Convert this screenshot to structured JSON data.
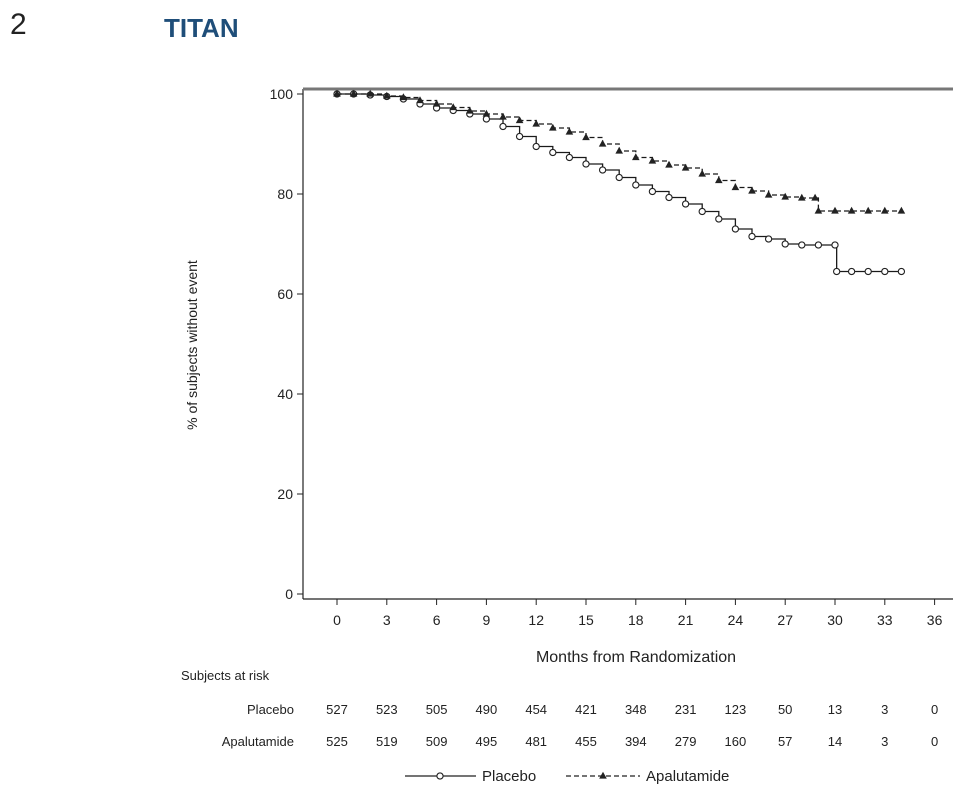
{
  "figure_number": "2",
  "figure_title": "TITAN",
  "chart_data": {
    "type": "line",
    "xlabel": "Months from Randomization",
    "ylabel": "% of subjects without event",
    "xlim": [
      -2,
      36.5
    ],
    "ylim": [
      -1,
      101
    ],
    "x_ticks": [
      0,
      3,
      6,
      9,
      12,
      15,
      18,
      21,
      24,
      27,
      30,
      33,
      36
    ],
    "y_ticks": [
      0,
      20,
      40,
      60,
      80,
      100
    ],
    "grid": false,
    "series": [
      {
        "name": "Placebo",
        "style": "solid",
        "marker": "open-circle",
        "color": "#1a1a1a",
        "x": [
          0,
          1,
          2,
          3,
          4,
          5,
          6,
          7,
          8,
          9,
          10,
          11,
          12,
          13,
          14,
          15,
          16,
          17,
          18,
          19,
          20,
          21,
          22,
          23,
          24,
          25,
          26,
          27,
          28,
          29,
          30,
          30.1,
          31,
          32,
          33,
          34
        ],
        "y": [
          100,
          100,
          99.8,
          99.5,
          99,
          98,
          97.2,
          96.7,
          96,
          95,
          93.5,
          91.5,
          89.5,
          88.3,
          87.3,
          86,
          84.8,
          83.3,
          81.8,
          80.5,
          79.3,
          78,
          76.5,
          75,
          73,
          71.5,
          71,
          70,
          69.8,
          69.8,
          69.8,
          64.5,
          64.5,
          64.5,
          64.5,
          64.5
        ]
      },
      {
        "name": "Apalutamide",
        "style": "dashed",
        "marker": "filled-triangle",
        "color": "#1a1a1a",
        "x": [
          0,
          1,
          2,
          3,
          4,
          5,
          6,
          7,
          8,
          9,
          10,
          11,
          12,
          13,
          14,
          15,
          16,
          17,
          18,
          19,
          20,
          21,
          22,
          23,
          24,
          25,
          26,
          27,
          28,
          28.8,
          29,
          30,
          31,
          32,
          33,
          34
        ],
        "y": [
          100,
          100,
          100,
          99.6,
          99.3,
          98.7,
          98,
          97.3,
          96.6,
          96,
          95.4,
          94.7,
          94,
          93.2,
          92.4,
          91.3,
          90,
          88.6,
          87.3,
          86.6,
          85.8,
          85.2,
          84,
          82.7,
          81.3,
          80.6,
          79.8,
          79.4,
          79.2,
          79.2,
          76.6,
          76.6,
          76.6,
          76.6,
          76.6,
          76.6
        ]
      }
    ],
    "risk_table": {
      "title": "Subjects at risk",
      "times": [
        0,
        3,
        6,
        9,
        12,
        15,
        18,
        21,
        24,
        27,
        30,
        33,
        36
      ],
      "rows": [
        {
          "label": "Placebo",
          "values": [
            "527",
            "523",
            "505",
            "490",
            "454",
            "421",
            "348",
            "231",
            "123",
            "50",
            "13",
            "3",
            "0"
          ]
        },
        {
          "label": "Apalutamide",
          "values": [
            "525",
            "519",
            "509",
            "495",
            "481",
            "455",
            "394",
            "279",
            "160",
            "57",
            "14",
            "3",
            "0"
          ]
        }
      ]
    },
    "legend_position": "bottom-center",
    "legend": [
      {
        "label": "Placebo",
        "series": 0
      },
      {
        "label": "Apalutamide",
        "series": 1
      }
    ]
  }
}
